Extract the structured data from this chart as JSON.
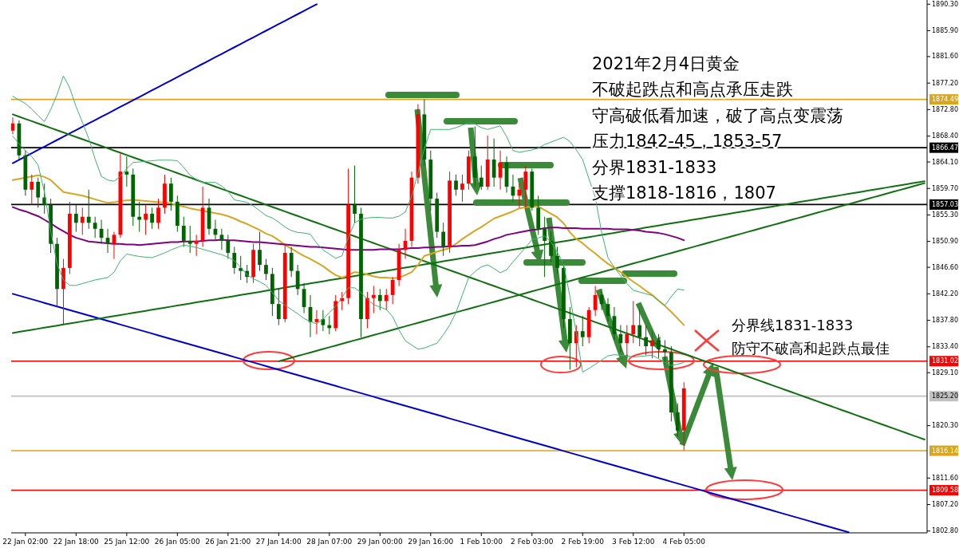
{
  "chart_data": {
    "type": "candlestick",
    "title": "2021年2月4日黄金",
    "annotations": [
      "不破起跌点和高点承压走跌",
      "守高破低看加速，破了高点变震荡",
      "压力1842-45，1853-57",
      "分界1831-1833",
      "支撑1818-1816，1807",
      "分界线1831-1833",
      "防守不破高和起跌点最佳"
    ],
    "categories": [
      null,
      null,
      "22 Jan 02:00",
      null,
      null,
      null,
      null,
      null,
      null,
      null,
      "22 Jan 18:00",
      null,
      null,
      null,
      null,
      null,
      null,
      null,
      "25 Jan 12:00",
      null,
      null,
      null,
      null,
      null,
      null,
      null,
      "26 Jan 05:00",
      null,
      null,
      null,
      null,
      null,
      null,
      null,
      "26 Jan 21:00",
      null,
      null,
      null,
      null,
      null,
      null,
      null,
      "27 Jan 14:00",
      null,
      null,
      null,
      null,
      null,
      null,
      null,
      "28 Jan 07:00",
      null,
      null,
      null,
      null,
      null,
      null,
      null,
      "29 Jan 00:00",
      null,
      null,
      null,
      null,
      null,
      null,
      null,
      "29 Jan 16:00",
      null,
      null,
      null,
      null,
      null,
      null,
      null,
      "1 Feb 10:00",
      null,
      null,
      null,
      null,
      null,
      null,
      null,
      "2 Feb 03:00",
      null,
      null,
      null,
      null,
      null,
      null,
      null,
      "2 Feb 19:00",
      null,
      null,
      null,
      null,
      null,
      null,
      null,
      "3 Feb 12:00",
      null,
      null,
      null,
      null,
      null,
      null,
      null,
      "4 Feb 05:00",
      null,
      null,
      null,
      null,
      null,
      null,
      null,
      null,
      null,
      null,
      null,
      null,
      null,
      null,
      null,
      null,
      null,
      null,
      null,
      null,
      null,
      null,
      null,
      null,
      null,
      null,
      null,
      null,
      null,
      null,
      null,
      null,
      null,
      null,
      null,
      null,
      null,
      null
    ],
    "ohlc": [
      [
        1869.3,
        1871.5,
        1868.7,
        1870.5
      ],
      [
        1870.5,
        1871.0,
        1864.5,
        1865.2
      ],
      [
        1865.2,
        1866.0,
        1858.5,
        1859.5
      ],
      [
        1859.5,
        1862.0,
        1857.0,
        1860.8
      ],
      [
        1860.8,
        1861.5,
        1856.5,
        1858.2
      ],
      [
        1858.2,
        1860.5,
        1855.5,
        1857.0
      ],
      [
        1857.0,
        1858.0,
        1849.0,
        1850.5
      ],
      [
        1850.5,
        1851.5,
        1840.0,
        1843.0
      ],
      [
        1843.0,
        1848.0,
        1837.0,
        1846.5
      ],
      [
        1846.5,
        1857.5,
        1845.5,
        1855.5
      ],
      [
        1855.5,
        1857.0,
        1852.5,
        1854.0
      ],
      [
        1854.0,
        1856.5,
        1852.0,
        1855.0
      ],
      [
        1855.0,
        1859.5,
        1853.0,
        1854.0
      ],
      [
        1854.0,
        1855.0,
        1851.5,
        1853.0
      ],
      [
        1853.0,
        1854.5,
        1850.5,
        1851.5
      ],
      [
        1851.5,
        1853.0,
        1849.0,
        1850.5
      ],
      [
        1850.5,
        1852.5,
        1848.0,
        1852.0
      ],
      [
        1852.0,
        1865.5,
        1851.5,
        1862.5
      ],
      [
        1862.5,
        1865.0,
        1860.0,
        1862.0
      ],
      [
        1862.0,
        1863.0,
        1853.5,
        1855.0
      ],
      [
        1855.0,
        1857.5,
        1852.5,
        1854.5
      ],
      [
        1854.5,
        1857.0,
        1852.0,
        1855.5
      ],
      [
        1855.5,
        1856.5,
        1853.0,
        1854.0
      ],
      [
        1854.0,
        1858.0,
        1853.0,
        1856.5
      ],
      [
        1856.5,
        1862.0,
        1855.5,
        1860.5
      ],
      [
        1860.5,
        1861.5,
        1856.0,
        1857.5
      ],
      [
        1857.5,
        1858.5,
        1852.5,
        1853.5
      ],
      [
        1853.5,
        1855.0,
        1850.0,
        1851.0
      ],
      [
        1851.0,
        1853.5,
        1849.0,
        1850.5
      ],
      [
        1850.5,
        1852.0,
        1848.5,
        1851.0
      ],
      [
        1851.0,
        1860.0,
        1850.0,
        1856.5
      ],
      [
        1856.5,
        1858.0,
        1852.0,
        1853.0
      ],
      [
        1853.0,
        1854.5,
        1851.0,
        1852.0
      ],
      [
        1852.0,
        1853.0,
        1849.5,
        1851.0
      ],
      [
        1851.0,
        1852.0,
        1848.0,
        1849.0
      ],
      [
        1849.0,
        1850.0,
        1845.5,
        1846.5
      ],
      [
        1846.5,
        1848.5,
        1844.5,
        1846.0
      ],
      [
        1846.0,
        1847.0,
        1844.0,
        1845.0
      ],
      [
        1845.0,
        1850.5,
        1844.0,
        1849.5
      ],
      [
        1849.5,
        1852.5,
        1846.0,
        1847.0
      ],
      [
        1847.0,
        1848.0,
        1844.5,
        1845.5
      ],
      [
        1845.5,
        1846.5,
        1838.5,
        1840.5
      ],
      [
        1840.5,
        1843.0,
        1837.0,
        1838.0
      ],
      [
        1838.0,
        1850.5,
        1837.5,
        1849.0
      ],
      [
        1849.0,
        1850.0,
        1845.0,
        1846.0
      ],
      [
        1846.0,
        1847.0,
        1842.0,
        1843.0
      ],
      [
        1843.0,
        1844.0,
        1839.0,
        1840.0
      ],
      [
        1840.0,
        1842.0,
        1835.0,
        1837.5
      ],
      [
        1837.5,
        1839.5,
        1835.5,
        1838.0
      ],
      [
        1838.0,
        1839.5,
        1836.0,
        1837.0
      ],
      [
        1837.0,
        1838.5,
        1835.5,
        1836.5
      ],
      [
        1836.5,
        1842.0,
        1836.0,
        1841.0
      ],
      [
        1841.0,
        1842.5,
        1839.5,
        1841.5
      ],
      [
        1841.5,
        1863.0,
        1840.5,
        1857.0
      ],
      [
        1857.0,
        1863.5,
        1854.0,
        1855.5
      ],
      [
        1855.5,
        1856.5,
        1835.0,
        1838.0
      ],
      [
        1838.0,
        1842.5,
        1836.5,
        1841.5
      ],
      [
        1841.5,
        1843.5,
        1839.0,
        1842.0
      ],
      [
        1842.0,
        1843.0,
        1839.5,
        1841.0
      ],
      [
        1841.0,
        1843.0,
        1839.5,
        1842.0
      ],
      [
        1842.0,
        1845.0,
        1840.5,
        1844.5
      ],
      [
        1844.5,
        1850.5,
        1843.5,
        1849.5
      ],
      [
        1849.5,
        1853.0,
        1848.0,
        1851.0
      ],
      [
        1851.0,
        1862.5,
        1850.0,
        1861.5
      ],
      [
        1861.5,
        1873.7,
        1860.5,
        1872.0
      ],
      [
        1872.0,
        1874.5,
        1863.5,
        1864.5
      ],
      [
        1864.5,
        1866.0,
        1856.0,
        1858.0
      ],
      [
        1858.0,
        1859.0,
        1851.5,
        1852.5
      ],
      [
        1852.5,
        1854.0,
        1848.5,
        1850.0
      ],
      [
        1850.0,
        1862.5,
        1849.0,
        1861.0
      ],
      [
        1861.0,
        1862.0,
        1858.5,
        1859.5
      ],
      [
        1859.5,
        1862.0,
        1857.5,
        1860.5
      ],
      [
        1860.5,
        1866.0,
        1859.5,
        1865.0
      ],
      [
        1865.0,
        1870.0,
        1860.0,
        1861.5
      ],
      [
        1861.5,
        1863.5,
        1859.5,
        1860.0
      ],
      [
        1860.0,
        1868.5,
        1859.5,
        1864.5
      ],
      [
        1864.5,
        1868.0,
        1860.0,
        1861.5
      ],
      [
        1861.5,
        1866.0,
        1859.5,
        1864.0
      ],
      [
        1864.0,
        1865.0,
        1859.0,
        1860.0
      ],
      [
        1860.0,
        1862.0,
        1857.5,
        1858.5
      ],
      [
        1858.5,
        1860.5,
        1856.5,
        1859.5
      ],
      [
        1859.5,
        1863.5,
        1856.5,
        1862.5
      ],
      [
        1862.5,
        1863.0,
        1856.0,
        1856.5
      ],
      [
        1856.5,
        1858.5,
        1852.0,
        1853.0
      ],
      [
        1853.0,
        1855.0,
        1845.0,
        1851.0
      ],
      [
        1851.0,
        1852.5,
        1847.5,
        1848.5
      ],
      [
        1848.5,
        1850.0,
        1845.5,
        1846.5
      ],
      [
        1846.5,
        1847.5,
        1836.5,
        1838.0
      ],
      [
        1838.0,
        1840.0,
        1829.6,
        1834.0
      ],
      [
        1834.0,
        1837.0,
        1830.0,
        1836.0
      ],
      [
        1836.0,
        1838.5,
        1833.5,
        1835.0
      ],
      [
        1835.0,
        1840.0,
        1834.0,
        1839.5
      ],
      [
        1839.5,
        1843.5,
        1838.5,
        1842.0
      ],
      [
        1842.0,
        1843.0,
        1839.5,
        1840.5
      ],
      [
        1840.5,
        1841.5,
        1837.5,
        1838.5
      ],
      [
        1838.5,
        1840.0,
        1834.5,
        1835.5
      ],
      [
        1835.5,
        1837.0,
        1832.5,
        1834.0
      ],
      [
        1834.0,
        1837.0,
        1832.0,
        1835.5
      ],
      [
        1835.5,
        1841.0,
        1834.0,
        1837.0
      ],
      [
        1837.0,
        1839.5,
        1833.5,
        1835.0
      ],
      [
        1835.0,
        1837.0,
        1832.0,
        1833.5
      ],
      [
        1833.5,
        1836.0,
        1831.5,
        1834.5
      ],
      [
        1834.5,
        1835.5,
        1831.5,
        1833.0
      ],
      [
        1833.0,
        1834.5,
        1830.5,
        1832.5
      ],
      [
        1832.5,
        1833.5,
        1821.0,
        1822.5
      ],
      [
        1822.5,
        1824.0,
        1818.5,
        1819.5
      ],
      [
        1819.5,
        1827.5,
        1816.2,
        1826.5
      ],
      null,
      null,
      null,
      null,
      null,
      null,
      null,
      null,
      null,
      null,
      null,
      null,
      null,
      null,
      null,
      null,
      null,
      null,
      null,
      null,
      null,
      null,
      null,
      null,
      null,
      null,
      null,
      null,
      null,
      null,
      null,
      null,
      null,
      null,
      null,
      null,
      null,
      null
    ],
    "series": [
      {
        "type": "line",
        "color": "#0000cd",
        "values": [
          1863.9,
          1864.45,
          1865,
          1865.55,
          1866.1,
          1866.65,
          1867.2,
          1867.75,
          1868.3,
          1868.85,
          1869.4,
          1869.95,
          1870.5,
          1871.05,
          1871.6,
          1872.15,
          1872.7,
          1873.25,
          1873.8,
          1874.35,
          1874.9,
          1875.45,
          1876,
          1876.55,
          1877.1,
          1877.65,
          1878.2,
          1878.75,
          1879.3,
          1879.85,
          1880.4,
          1880.95,
          1881.5,
          1882.05,
          1882.6,
          1883.15,
          1883.7,
          1884.25,
          1884.8,
          1885.35,
          1885.9,
          1886.45,
          1887,
          1887.55,
          1888.1,
          1888.65,
          1889.2,
          1889.75,
          1890.3,
          null,
          null,
          null,
          null,
          null,
          null,
          null,
          null,
          null,
          null,
          null,
          null,
          null,
          null,
          null,
          null,
          null,
          null,
          null,
          null,
          null,
          null,
          null,
          null,
          null,
          null,
          null,
          null,
          null,
          null,
          null,
          null,
          null,
          null,
          null,
          null,
          null,
          null,
          null,
          null,
          null,
          null,
          null,
          null,
          null,
          null,
          null,
          null,
          null,
          null,
          null,
          null,
          null,
          null,
          null,
          null,
          null,
          null,
          null,
          null,
          null,
          null,
          null,
          null,
          null,
          null,
          null,
          null,
          null,
          null,
          null,
          null,
          null,
          null,
          null,
          null,
          null,
          null,
          null,
          null,
          null,
          null,
          null,
          null,
          null,
          null,
          null,
          null,
          null,
          null,
          null,
          null,
          null,
          null,
          null,
          null
        ]
      },
      {
        "type": "line",
        "color": "#0000cd",
        "values": [
          1842.2,
          1841.9,
          1841.6,
          1841.3,
          1841,
          1840.7,
          1840.4,
          1840.1,
          1839.8,
          1839.5,
          1839.2,
          1838.9,
          1838.6,
          1838.3,
          1838,
          1837.7,
          1837.4,
          1837.1,
          1836.8,
          1836.5,
          1836.2,
          1835.9,
          1835.6,
          1835.3,
          1835,
          1834.7,
          1834.4,
          1834.1,
          1833.8,
          1833.5,
          1833.2,
          1832.9,
          1832.6,
          1832.3,
          1832,
          1831.7,
          1831.4,
          1831.1,
          1830.8,
          1830.5,
          1830.2,
          1829.9,
          1829.6,
          1829.3,
          1829,
          1828.7,
          1828.4,
          1828.1,
          1827.8,
          1827.5,
          1827.2,
          1826.9,
          1826.6,
          1826.3,
          1826,
          1825.7,
          1825.4,
          1825.1,
          1824.8,
          1824.5,
          1824.2,
          1823.9,
          1823.6,
          1823.3,
          1823,
          1822.7,
          1822.4,
          1822.1,
          1821.8,
          1821.5,
          1821.2,
          1820.9,
          1820.6,
          1820.3,
          1820,
          1819.7,
          1819.4,
          1819.1,
          1818.8,
          1818.5,
          1818.2,
          1817.9,
          1817.6,
          1817.3,
          1817,
          1816.7,
          1816.4,
          1816.1,
          1815.8,
          1815.5,
          1815.2,
          1814.9,
          1814.6,
          1814.3,
          1814,
          1813.7,
          1813.4,
          1813.1,
          1812.8,
          1812.5,
          1812.2,
          1811.9,
          1811.6,
          1811.3,
          1811,
          1810.7,
          1810.4,
          1810.1,
          1809.8,
          1809.5,
          1809.2,
          1808.9,
          1808.6,
          1808.3,
          1808,
          1807.7,
          1807.4,
          1807.1,
          1806.8,
          1806.5,
          1806.2,
          1805.9,
          1805.6,
          1805.3,
          1805,
          1804.7,
          1804.4,
          1804.1,
          1803.8,
          1803.5,
          1803.2,
          1802.9,
          1802.6,
          null,
          null,
          null,
          null,
          null,
          null,
          null,
          null,
          null,
          null,
          null,
          null
        ]
      },
      {
        "type": "line",
        "color": "#107010",
        "values": [
          1872,
          1871.625,
          1871.25,
          1870.875,
          1870.5,
          1870.125,
          1869.75,
          1869.375,
          1869,
          1868.625,
          1868.25,
          1867.875,
          1867.5,
          1867.125,
          1866.75,
          1866.375,
          1866,
          1865.625,
          1865.25,
          1864.875,
          1864.5,
          1864.125,
          1863.75,
          1863.375,
          1863,
          1862.625,
          1862.25,
          1861.875,
          1861.5,
          1861.125,
          1860.75,
          1860.375,
          1860,
          1859.625,
          1859.25,
          1858.875,
          1858.5,
          1858.125,
          1857.75,
          1857.375,
          1857,
          1856.625,
          1856.25,
          1855.875,
          1855.5,
          1855.125,
          1854.75,
          1854.375,
          1854,
          1853.625,
          1853.25,
          1852.875,
          1852.5,
          1852.125,
          1851.75,
          1851.375,
          1851,
          1850.625,
          1850.25,
          1849.875,
          1849.5,
          1849.125,
          1848.75,
          1848.375,
          1848,
          1847.625,
          1847.25,
          1846.875,
          1846.5,
          1846.125,
          1845.75,
          1845.375,
          1845,
          1844.625,
          1844.25,
          1843.875,
          1843.5,
          1843.125,
          1842.75,
          1842.375,
          1842,
          1841.625,
          1841.25,
          1840.875,
          1840.5,
          1840.125,
          1839.75,
          1839.375,
          1839,
          1838.625,
          1838.25,
          1837.875,
          1837.5,
          1837.125,
          1836.75,
          1836.375,
          1836,
          1835.625,
          1835.25,
          1834.875,
          1834.5,
          1834.125,
          1833.75,
          1833.375,
          1833,
          1832.625,
          1832.25,
          1831.875,
          1831.5,
          1831.125,
          1830.75,
          1830.375,
          1830,
          1829.625,
          1829.25,
          1828.875,
          1828.5,
          1828.125,
          1827.75,
          1827.375,
          1827,
          1826.625,
          1826.25,
          1825.875,
          1825.5,
          1825.125,
          1824.75,
          1824.375,
          1824,
          1823.625,
          1823.25,
          1822.875,
          1822.5,
          1822.125,
          1821.75,
          1821.375,
          1821,
          1820.625,
          1820.25,
          1819.875,
          1819.5,
          1819.125,
          1818.75,
          1818.375,
          1818
        ]
      },
      {
        "type": "line",
        "color": "#107010",
        "values": [
          1835.7,
          1835.875,
          1836.05,
          1836.225,
          1836.4,
          1836.575,
          1836.75,
          1836.925,
          1837.1,
          1837.275,
          1837.45,
          1837.625,
          1837.8,
          1837.975,
          1838.15,
          1838.325,
          1838.5,
          1838.675,
          1838.85,
          1839.025,
          1839.2,
          1839.375,
          1839.55,
          1839.725,
          1839.9,
          1840.075,
          1840.25,
          1840.425,
          1840.6,
          1840.775,
          1840.95,
          1841.125,
          1841.3,
          1841.475,
          1841.65,
          1841.825,
          1842,
          1842.175,
          1842.35,
          1842.525,
          1842.7,
          1842.875,
          1843.05,
          1843.225,
          1843.4,
          1843.575,
          1843.75,
          1843.925,
          1844.1,
          1844.275,
          1844.45,
          1844.625,
          1844.8,
          1844.975,
          1845.15,
          1845.325,
          1845.5,
          1845.675,
          1845.85,
          1846.025,
          1846.2,
          1846.375,
          1846.55,
          1846.725,
          1846.9,
          1847.075,
          1847.25,
          1847.425,
          1847.6,
          1847.775,
          1847.95,
          1848.125,
          1848.3,
          1848.475,
          1848.65,
          1848.825,
          1849,
          1849.175,
          1849.35,
          1849.525,
          1849.7,
          1849.875,
          1850.05,
          1850.225,
          1850.4,
          1850.575,
          1850.75,
          1850.925,
          1851.1,
          1851.275,
          1851.45,
          1851.625,
          1851.8,
          1851.975,
          1852.15,
          1852.325,
          1852.5,
          1852.675,
          1852.85,
          1853.025,
          1853.2,
          1853.375,
          1853.55,
          1853.725,
          1853.9,
          1854.075,
          1854.25,
          1854.425,
          1854.6,
          1854.775,
          1854.95,
          1855.125,
          1855.3,
          1855.475,
          1855.65,
          1855.825,
          1856,
          1856.175,
          1856.35,
          1856.525,
          1856.7,
          1856.875,
          1857.05,
          1857.225,
          1857.4,
          1857.575,
          1857.75,
          1857.925,
          1858.1,
          1858.275,
          1858.45,
          1858.625,
          1858.8,
          1858.975,
          1859.15,
          1859.325,
          1859.5,
          1859.675,
          1859.85,
          1860.025,
          1860.2,
          1860.375,
          1860.55,
          1860.725,
          1860.9
        ]
      },
      {
        "type": "line",
        "color": "#107010",
        "values": [
          null,
          null,
          null,
          null,
          null,
          null,
          null,
          null,
          null,
          null,
          null,
          null,
          null,
          null,
          null,
          null,
          null,
          null,
          null,
          null,
          null,
          null,
          null,
          null,
          null,
          null,
          null,
          null,
          null,
          null,
          null,
          null,
          null,
          null,
          null,
          null,
          null,
          null,
          null,
          null,
          null,
          null,
          1831,
          1831.29,
          1831.58,
          1831.87,
          1832.16,
          1832.45,
          1832.74,
          1833.03,
          1833.32,
          1833.61,
          1833.9,
          1834.19,
          1834.48,
          1834.77,
          1835.06,
          1835.35,
          1835.64,
          1835.93,
          1836.22,
          1836.51,
          1836.8,
          1837.09,
          1837.38,
          1837.67,
          1837.96,
          1838.25,
          1838.54,
          1838.83,
          1839.12,
          1839.41,
          1839.7,
          1839.99,
          1840.28,
          1840.57,
          1840.86,
          1841.15,
          1841.44,
          1841.73,
          1842.02,
          1842.31,
          1842.6,
          1842.89,
          1843.18,
          1843.47,
          1843.76,
          1844.05,
          1844.34,
          1844.63,
          1844.92,
          1845.21,
          1845.5,
          1845.79,
          1846.08,
          1846.37,
          1846.66,
          1846.95,
          1847.24,
          1847.53,
          1847.82,
          1848.11,
          1848.4,
          1848.69,
          1848.98,
          1849.27,
          1849.56,
          1849.85,
          1850.14,
          1850.43,
          1850.72,
          1851.01,
          1851.3,
          1851.59,
          1851.88,
          1852.17,
          1852.46,
          1852.75,
          1853.04,
          1853.33,
          1853.62,
          1853.91,
          1854.2,
          1854.49,
          1854.78,
          1855.07,
          1855.36,
          1855.65,
          1855.94,
          1856.23,
          1856.52,
          1856.81,
          1857.1,
          1857.39,
          1857.68,
          1857.97,
          1858.26,
          1858.55,
          1858.84,
          1859.13,
          1859.42,
          1859.71,
          1860,
          1860.29,
          1860.58
        ]
      },
      {
        "type": "line",
        "color": "#3cb371",
        "values": [
          1875.0,
          1874.4,
          1873.8,
          1872.9,
          1871.8,
          1870.8,
          1872.8,
          1875.3,
          1878.4,
          1876.4,
          1873.3,
          1870.7,
          1868.0,
          1864.6,
          1861.7,
          1861.1,
          1860.9,
          1861.7,
          1863.0,
          1864.0,
          1864.1,
          1864.2,
          1864.3,
          1864.4,
          1864.4,
          1864.4,
          1864.3,
          1863.2,
          1861.9,
          1861.2,
          1860.7,
          1860.7,
          1860.7,
          1860.1,
          1859.2,
          1857.8,
          1857.6,
          1857.4,
          1856.8,
          1856.0,
          1855.2,
          1854.8,
          1854.1,
          1853.3,
          1852.7,
          1852.4,
          1852.3,
          1852.1,
          1850.6,
          1849.5,
          1848.8,
          1848.1,
          1848.5,
          1851.6,
          1854.0,
          1854.6,
          1854.8,
          1854.9,
          1854.9,
          1854.8,
          1854.8,
          1855.1,
          1855.8,
          1858.4,
          1862.3,
          1866.3,
          1869.5,
          1869.5,
          1869.5,
          1869.5,
          1869.8,
          1870.2,
          1870.6,
          1870.4,
          1869.8,
          1869.5,
          1869.8,
          1870.1,
          1868.3,
          1866.0,
          1865.7,
          1865.9,
          1866.1,
          1866.4,
          1867.0,
          1867.4,
          1867.8,
          1868.2,
          1867.5,
          1866.1,
          1864.5,
          1861.3,
          1858.2,
          1852.4,
          1848.2,
          1846.6,
          1845.2,
          1843.9,
          1842.8,
          1842.5,
          1842.2,
          1841.9,
          1841.0,
          1840.3,
          1841.7,
          1843.0,
          1842.8,
          null,
          null,
          null,
          null,
          null,
          null,
          null,
          null,
          null,
          null,
          null,
          null,
          null,
          null,
          null,
          null,
          null,
          null,
          null,
          null,
          null,
          null,
          null,
          null,
          null,
          null,
          null,
          null,
          null,
          null,
          null,
          null,
          null,
          null,
          null,
          null,
          null,
          null
        ]
      },
      {
        "type": "line",
        "color": "#3cb371",
        "values": [
          1868.4,
          1867.1,
          1866.0,
          1865.0,
          1863.6,
          1859.1,
          1852.6,
          1847.2,
          1844.5,
          1843.6,
          1843.6,
          1843.9,
          1844.2,
          1844.5,
          1844.7,
          1844.9,
          1845.8,
          1847.7,
          1848.8,
          1848.6,
          1848.4,
          1848.3,
          1848.2,
          1848.6,
          1849.0,
          1849.5,
          1849.9,
          1850.3,
          1850.1,
          1849.9,
          1849.6,
          1849.3,
          1849.0,
          1848.7,
          1848.3,
          1847.7,
          1846.6,
          1845.4,
          1844.7,
          1844.2,
          1843.6,
          1842.4,
          1841.1,
          1840.3,
          1839.6,
          1838.9,
          1838.1,
          1837.6,
          1837.2,
          1838.0,
          1839.1,
          1840.1,
          1841.6,
          1843.2,
          1843.2,
          1842.4,
          1841.3,
          1840.4,
          1840.0,
          1839.6,
          1838.4,
          1836.2,
          1834.4,
          1833.7,
          1833.0,
          1833.2,
          1833.6,
          1834.0,
          1835.4,
          1837.0,
          1839.1,
          1842.0,
          1844.9,
          1845.9,
          1846.7,
          1847.0,
          1846.4,
          1845.7,
          1846.2,
          1847.5,
          1848.7,
          1849.9,
          1851.2,
          1851.5,
          1851.8,
          1850.8,
          1849.1,
          1847.2,
          1841.7,
          1835.7,
          1829.2,
          1829.8,
          1830.5,
          1831.2,
          1831.9,
          1832.1,
          1832.0,
          1831.9,
          1831.7,
          1831.8,
          1831.9,
          1832.0,
          1831.4,
          1830.8,
          1830.3,
          1830.5,
          1830.8,
          null,
          null,
          null,
          null,
          null,
          null,
          null,
          null,
          null,
          null,
          null,
          null,
          null,
          null,
          null,
          null,
          null,
          null,
          null,
          null,
          null,
          null,
          null,
          null,
          null,
          null,
          null,
          null,
          null,
          null,
          null,
          null,
          null,
          null,
          null,
          null,
          null,
          null
        ]
      },
      {
        "type": "line",
        "color": "#daa520",
        "values": [
          1861.1,
          1861.3,
          1861.5,
          1861.7,
          1861.9,
          1861.6,
          1861.1,
          1860.1,
          1859.1,
          1858.9,
          1858.7,
          1858.5,
          1858.2,
          1857.9,
          1857.6,
          1857.3,
          1857.4,
          1857.6,
          1857.7,
          1857.8,
          1857.7,
          1857.6,
          1857.5,
          1857.4,
          1857.4,
          1857.2,
          1856.9,
          1856.7,
          1856.4,
          1856.2,
          1856.0,
          1855.8,
          1855.6,
          1855.4,
          1855.1,
          1854.7,
          1854.2,
          1853.8,
          1853.3,
          1852.8,
          1852.2,
          1851.8,
          1851.1,
          1850.3,
          1849.7,
          1849.1,
          1848.5,
          1848.0,
          1847.4,
          1846.8,
          1846.0,
          1845.3,
          1844.9,
          1845.3,
          1845.8,
          1845.7,
          1845.4,
          1845.1,
          1844.9,
          1844.9,
          1844.8,
          1844.9,
          1845.3,
          1845.8,
          1847.0,
          1848.5,
          1848.8,
          1849.2,
          1849.5,
          1849.8,
          1850.5,
          1851.3,
          1852.0,
          1852.7,
          1853.3,
          1854.0,
          1854.7,
          1855.1,
          1855.5,
          1855.9,
          1856.4,
          1856.6,
          1856.7,
          1856.7,
          1856.1,
          1855.5,
          1854.9,
          1853.9,
          1852.4,
          1851.3,
          1850.6,
          1849.7,
          1848.9,
          1848.0,
          1847.2,
          1846.5,
          1845.8,
          1845.0,
          1844.2,
          1843.5,
          1842.7,
          1842.0,
          1841.1,
          1840.2,
          1839.2,
          1838.1,
          1837.0,
          null,
          null,
          null,
          null,
          null,
          null,
          null,
          null,
          null,
          null,
          null,
          null,
          null,
          null,
          null,
          null,
          null,
          null,
          null,
          null,
          null,
          null,
          null,
          null,
          null,
          null,
          null,
          null,
          null,
          null,
          null,
          null,
          null,
          null,
          null,
          null,
          null,
          null
        ]
      },
      {
        "type": "line",
        "color": "#800080",
        "values": [
          1856.6,
          1856.2,
          1855.9,
          1855.5,
          1855.1,
          1854.5,
          1853.9,
          1853.2,
          1852.6,
          1852.0,
          1851.5,
          1851.2,
          1850.9,
          1850.8,
          1850.7,
          1850.6,
          1850.5,
          1850.5,
          1850.4,
          1850.4,
          1850.3,
          1850.4,
          1850.5,
          1850.6,
          1850.7,
          1850.8,
          1850.8,
          1850.9,
          1850.9,
          1850.9,
          1851.0,
          1851.1,
          1851.1,
          1851.2,
          1851.1,
          1851.1,
          1851.0,
          1850.9,
          1850.8,
          1850.8,
          1850.7,
          1850.6,
          1850.5,
          1850.4,
          1850.3,
          1850.2,
          1850.1,
          1850.0,
          1850.0,
          1849.9,
          1849.8,
          1849.7,
          1849.6,
          1849.5,
          1849.5,
          1849.5,
          1849.5,
          1849.5,
          1849.6,
          1849.6,
          1849.6,
          1849.6,
          1849.7,
          1849.8,
          1849.8,
          1849.9,
          1849.9,
          1850.0,
          1850.0,
          1850.1,
          1850.1,
          1850.2,
          1850.2,
          1850.3,
          1850.6,
          1850.9,
          1851.3,
          1851.6,
          1852.0,
          1852.2,
          1852.4,
          1852.6,
          1852.8,
          1852.9,
          1853.1,
          1853.2,
          1853.2,
          1853.1,
          1853.1,
          1853.1,
          1853.0,
          1853.0,
          1853.0,
          1853.0,
          1853.0,
          1852.9,
          1852.9,
          1852.9,
          1852.8,
          1852.7,
          1852.5,
          1852.4,
          1852.3,
          1852.1,
          1851.8,
          1851.5,
          1851.1,
          null,
          null,
          null,
          null,
          null,
          null,
          null,
          null,
          null,
          null,
          null,
          null,
          null,
          null,
          null,
          null,
          null,
          null,
          null,
          null,
          null,
          null,
          null,
          null,
          null,
          null,
          null,
          null,
          null,
          null,
          null,
          null,
          null,
          null,
          null,
          null,
          null,
          null
        ]
      }
    ],
    "ref_lines": [
      {
        "axis": "y",
        "value": 1874.49,
        "label": "1874.49",
        "color": "#daa520"
      },
      {
        "axis": "y",
        "value": 1866.47,
        "label": "1866.47",
        "color": "#000000"
      },
      {
        "axis": "y",
        "value": 1857.03,
        "label": "1857.03",
        "color": "#000000"
      },
      {
        "axis": "y",
        "value": 1831.02,
        "label": "1831.02",
        "color": "#ff0000"
      },
      {
        "axis": "y",
        "value": 1825.2,
        "label": "1825.20",
        "color": "#c0c0c0"
      },
      {
        "axis": "y",
        "value": 1816.14,
        "label": "1816.14",
        "color": "#daa520"
      },
      {
        "axis": "y",
        "value": 1809.58,
        "label": "1809.58",
        "color": "#ff0000"
      }
    ],
    "ylim": [
      1802.5,
      1891.0
    ],
    "yticks": [
      {
        "value": 1890.3,
        "label": "1890.30"
      },
      {
        "value": 1885.9,
        "label": "1885.90"
      },
      {
        "value": 1881.6,
        "label": "1881.60"
      },
      {
        "value": 1877.2,
        "label": "1877.20"
      },
      {
        "value": 1872.8,
        "label": "1872.80"
      },
      {
        "value": 1868.4,
        "label": "1868.40"
      },
      {
        "value": 1864.1,
        "label": "1864.10"
      },
      {
        "value": 1859.7,
        "label": "1859.70"
      },
      {
        "value": 1855.3,
        "label": "1855.30"
      },
      {
        "value": 1850.9,
        "label": "1850.90"
      },
      {
        "value": 1846.6,
        "label": "1846.60"
      },
      {
        "value": 1842.2,
        "label": "1842.20"
      },
      {
        "value": 1837.8,
        "label": "1837.80"
      },
      {
        "value": 1833.4,
        "label": "1833.40"
      },
      {
        "value": 1829.1,
        "label": "1829.10"
      },
      {
        "value": 1820.3,
        "label": "1820.30"
      },
      {
        "value": 1811.6,
        "label": "1811.60"
      },
      {
        "value": 1807.2,
        "label": "1807.20"
      },
      {
        "value": 1802.8,
        "label": "1802.80"
      }
    ]
  }
}
